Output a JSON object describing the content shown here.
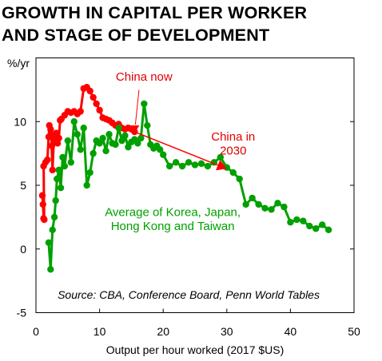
{
  "chart_data": {
    "type": "line",
    "title": [
      "GROWTH IN CAPITAL PER WORKER",
      "AND STAGE OF DEVELOPMENT"
    ],
    "xlabel": "Output per hour worked (2017 $US)",
    "ylabel": "%/yr",
    "xlim": [
      0,
      50
    ],
    "ylim": [
      -5,
      15
    ],
    "xticks": [
      "0",
      "10",
      "20",
      "30",
      "40",
      "50"
    ],
    "yticks": [
      "-5",
      "0",
      "5",
      "10"
    ],
    "grid": false,
    "series": [
      {
        "key": "china",
        "color": "#ff0000",
        "x": [
          1.2,
          1.1,
          1.0,
          1.3,
          1.2,
          1.5,
          1.8,
          2.0,
          2.1,
          2.3,
          2.5,
          2.4,
          2.6,
          2.8,
          3.0,
          3.2,
          3.4,
          3.6,
          3.8,
          4.0,
          4.5,
          5.0,
          5.5,
          6.0,
          6.5,
          7.0,
          7.5,
          8.0,
          8.5,
          9.0,
          9.5,
          10.0,
          10.5,
          11.0,
          11.5,
          12.0,
          12.5,
          13.0,
          13.5,
          14.0,
          14.5,
          15.0,
          15.5
        ],
        "y": [
          2.4,
          3.5,
          4.2,
          2.3,
          6.5,
          6.8,
          7.0,
          8.8,
          9.7,
          9.4,
          8.1,
          9.0,
          6.2,
          8.4,
          8.8,
          9.1,
          8.3,
          8.7,
          10.1,
          10.2,
          10.5,
          10.8,
          10.7,
          10.8,
          10.6,
          10.8,
          12.6,
          12.7,
          12.4,
          11.9,
          11.4,
          10.9,
          10.3,
          10.2,
          10.1,
          9.9,
          9.7,
          9.8,
          9.5,
          9.4,
          9.5,
          9.4,
          9.2
        ]
      },
      {
        "key": "average",
        "color": "#00a000",
        "x": [
          2.0,
          2.3,
          2.6,
          2.9,
          3.1,
          3.3,
          3.6,
          3.9,
          4.2,
          4.5,
          5.0,
          5.5,
          6.0,
          6.5,
          7.0,
          7.5,
          8.0,
          8.5,
          9.0,
          9.5,
          10.0,
          10.5,
          11.0,
          11.5,
          12.0,
          12.5,
          13.0,
          13.5,
          14.0,
          14.5,
          15.0,
          15.5,
          16.0,
          16.5,
          17.0,
          17.5,
          18.0,
          18.5,
          19.0,
          19.5,
          20.0,
          21.0,
          22.0,
          23.0,
          24.0,
          25.0,
          26.0,
          27.0,
          28.0,
          29.0,
          30.0,
          31.0,
          32.0,
          33.0,
          34.0,
          35.0,
          36.0,
          37.0,
          38.0,
          39.0,
          40.0,
          41.0,
          42.0,
          43.0,
          44.0,
          45.0,
          46.0
        ],
        "y": [
          0.5,
          -1.6,
          1.5,
          2.5,
          3.8,
          5.5,
          6.2,
          4.8,
          7.2,
          6.5,
          8.5,
          6.8,
          10.0,
          9.0,
          7.8,
          9.5,
          5.0,
          6.0,
          7.5,
          8.5,
          8.3,
          8.7,
          7.7,
          9.0,
          8.3,
          8.2,
          9.5,
          8.5,
          8.9,
          8.0,
          8.4,
          8.6,
          8.3,
          8.7,
          11.4,
          9.7,
          8.2,
          7.9,
          8.1,
          7.8,
          7.4,
          6.5,
          6.8,
          6.5,
          6.8,
          6.6,
          6.7,
          6.5,
          6.8,
          7.2,
          6.4,
          6.0,
          5.5,
          3.5,
          4.0,
          3.5,
          3.2,
          3.1,
          3.6,
          3.3,
          2.1,
          2.3,
          2.2,
          1.8,
          1.6,
          1.9,
          1.5
        ]
      }
    ],
    "arrow": {
      "color": "#ff0000",
      "x": [
        15.5,
        30.0
      ],
      "y": [
        9.2,
        6.3
      ]
    },
    "annotations": [
      {
        "key": "china-now",
        "text": "China now",
        "color": "#e00000",
        "x": 17.0,
        "y": 13.2
      },
      {
        "key": "china-2030-line1",
        "text": "China in",
        "color": "#e00000",
        "x": 31.0,
        "y": 8.5
      },
      {
        "key": "china-2030-line2",
        "text": "2030",
        "color": "#e00000",
        "x": 31.0,
        "y": 7.4
      },
      {
        "key": "average-line1",
        "text": "Average of Korea, Japan,",
        "color": "#00a000",
        "x": 21.5,
        "y": 2.6
      },
      {
        "key": "average-line2",
        "text": "Hong Kong and Taiwan",
        "color": "#00a000",
        "x": 21.5,
        "y": 1.5
      },
      {
        "key": "source",
        "text": "Source: CBA, Conference Board, Penn World Tables",
        "color": "#000000",
        "x": 24.0,
        "y": -3.9
      }
    ]
  }
}
